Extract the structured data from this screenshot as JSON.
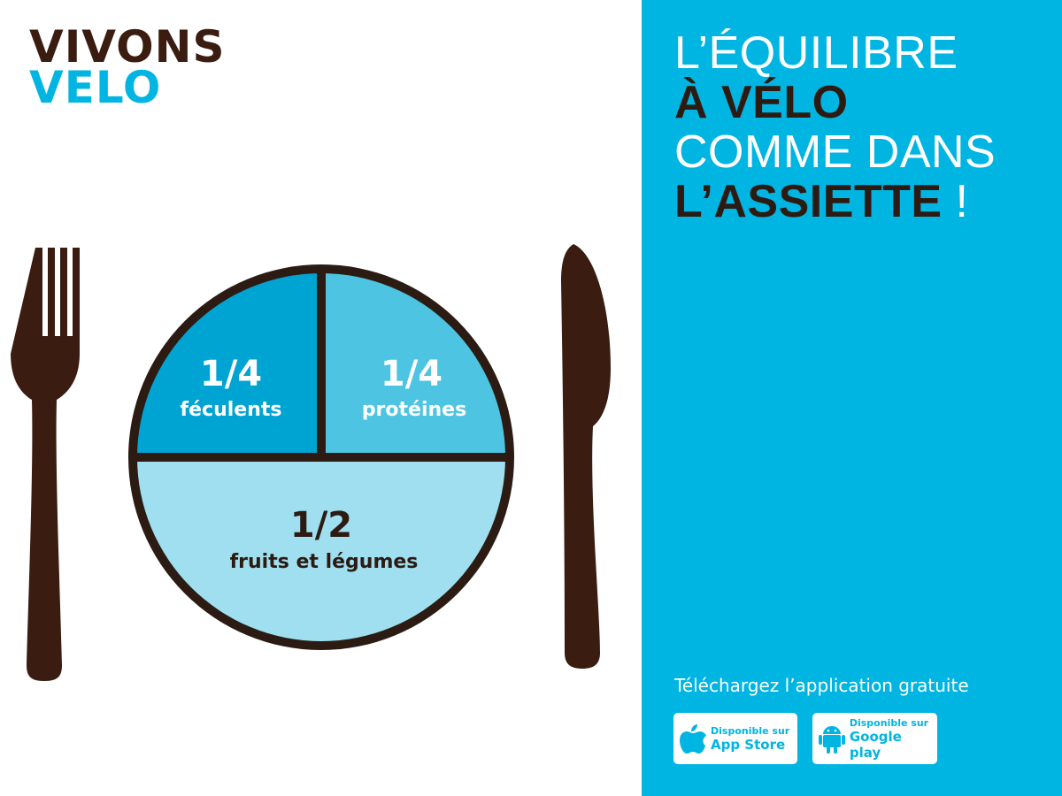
{
  "logo": {
    "line1": "VIVONS",
    "line2": "VELO"
  },
  "headline": {
    "line1": "L’ÉQUILIBRE",
    "line2": "À VÉLO",
    "line3": "COMME DANS",
    "line4": "L’ASSIETTE",
    "line4_suffix": " !"
  },
  "plate": {
    "starches": {
      "fraction": "1/4",
      "label": "féculents"
    },
    "proteins": {
      "fraction": "1/4",
      "label": "protéines"
    },
    "vegetables": {
      "fraction": "1/2",
      "label": "fruits et légumes"
    }
  },
  "download": {
    "title": "Téléchargez l’application gratuite",
    "app_store": {
      "small": "Disponible sur",
      "big": "App Store"
    },
    "google_play": {
      "small": "Disponible sur",
      "big": "Google play"
    }
  },
  "colors": {
    "brown": "#3a1c11",
    "cyan": "#00b5e2",
    "starches": "#00a4d3",
    "proteins": "#4cc4e2",
    "vegetables": "#9fdff0"
  },
  "icons": [
    "fork-icon",
    "knife-icon",
    "apple-icon",
    "android-icon"
  ]
}
